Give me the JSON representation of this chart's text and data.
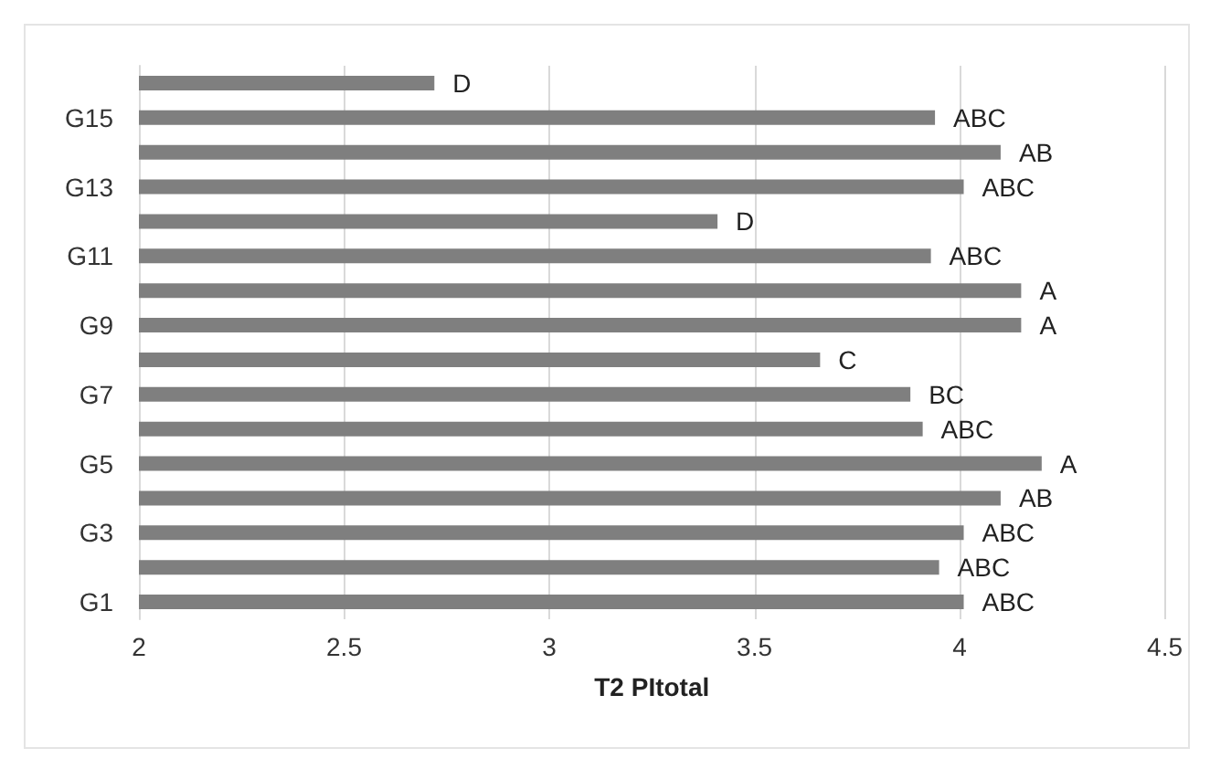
{
  "chart_data": {
    "type": "bar",
    "orientation": "horizontal",
    "xlabel": "T2 PItotal",
    "categories": [
      null,
      "G15",
      null,
      "G13",
      null,
      "G11",
      null,
      "G9",
      null,
      "G7",
      null,
      "G5",
      null,
      "G3",
      null,
      "G1"
    ],
    "values": [
      2.72,
      3.94,
      4.1,
      4.01,
      3.41,
      3.93,
      4.15,
      4.15,
      3.66,
      3.88,
      3.91,
      4.2,
      4.1,
      4.01,
      3.95,
      4.01
    ],
    "value_labels": [
      "D",
      "ABC",
      "AB",
      "ABC",
      "D",
      "ABC",
      "A",
      "A",
      "C",
      "BC",
      "ABC",
      "A",
      "AB",
      "ABC",
      "ABC",
      "ABC"
    ],
    "color": "#7f7f7f",
    "xlim": [
      2,
      4.5
    ],
    "xticks": [
      2,
      2.5,
      3,
      3.5,
      4,
      4.5
    ],
    "grid": "x"
  }
}
